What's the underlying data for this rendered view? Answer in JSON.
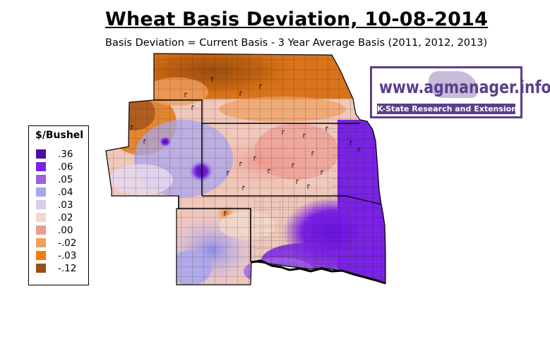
{
  "title": "Wheat Basis Deviation, 10-08-2014",
  "subtitle": "Basis Deviation = Current Basis - 3 Year Average Basis (2011, 2012, 2013)",
  "legend": {
    "title": "$/Bushel",
    "items": [
      {
        "label": ".36",
        "color": "#4b0f9e"
      },
      {
        "label": ".06",
        "color": "#7a22e6"
      },
      {
        "label": ".05",
        "color": "#9e5fe6"
      },
      {
        "label": ".04",
        "color": "#a9a6ee"
      },
      {
        "label": ".03",
        "color": "#d9ccf0"
      },
      {
        "label": ".02",
        "color": "#f3d9cc"
      },
      {
        "label": ".00",
        "color": "#ee9a8e"
      },
      {
        "label": "-.02",
        "color": "#f0a060"
      },
      {
        "label": "-.03",
        "color": "#f07d0e"
      },
      {
        "label": "-.12",
        "color": "#9a4d12"
      }
    ]
  },
  "logo": {
    "url": "www.agmanager.info",
    "subtitle": "K-State Research and Extension",
    "color": "#5a3f8c"
  }
}
